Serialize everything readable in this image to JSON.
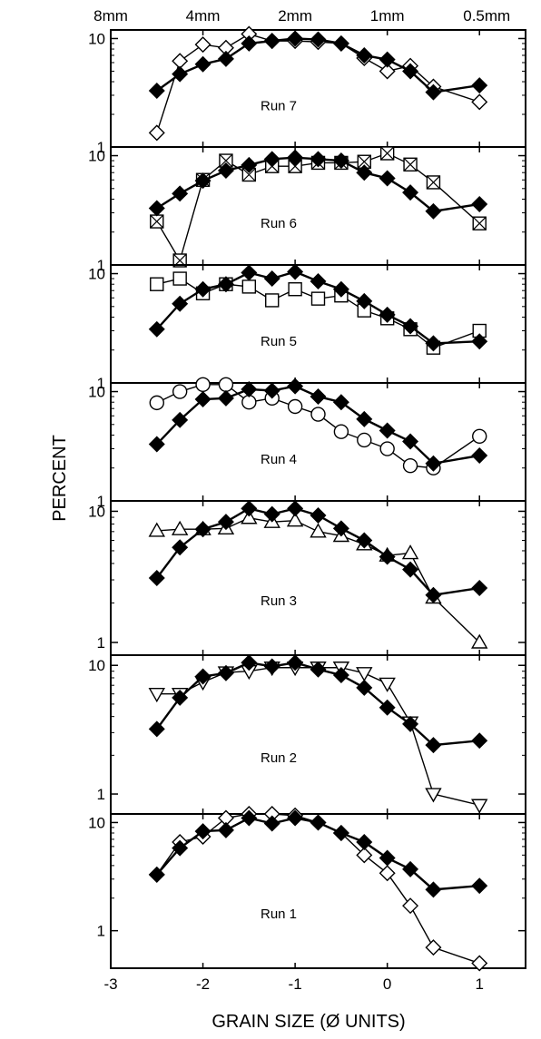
{
  "chart_data": {
    "type": "line",
    "xlabel": "GRAIN SIZE (Ø UNITS)",
    "ylabel": "PERCENT",
    "xlim": [
      -3,
      1.5
    ],
    "x_ticks": [
      -3,
      -2,
      -1,
      0,
      1
    ],
    "x_tick_labels": [
      "-3",
      "-2",
      "-1",
      "0",
      "1"
    ],
    "top_axis": {
      "ticks": [
        {
          "x": -3,
          "label": "8mm"
        },
        {
          "x": -2,
          "label": "4mm"
        },
        {
          "x": -1,
          "label": "2mm"
        },
        {
          "x": 0,
          "label": "1mm"
        },
        {
          "x": 1,
          "label": "0.5mm"
        }
      ]
    },
    "y_scale": "log",
    "x": [
      -2.5,
      -2.25,
      -2,
      -1.75,
      -1.5,
      -1.25,
      -1,
      -0.75,
      -0.5,
      -0.25,
      0,
      0.25,
      0.5,
      1
    ],
    "panels": [
      {
        "label": "Run 7",
        "ylim": [
          1,
          12
        ],
        "y_ticks": [
          1,
          10
        ],
        "series": [
          {
            "marker": "diamond-filled",
            "values": [
              3.3,
              4.7,
              5.8,
              6.5,
              9.0,
              9.5,
              10.0,
              9.8,
              9.0,
              7.0,
              6.4,
              5.0,
              3.2,
              3.7
            ]
          },
          {
            "marker": "diamond-open",
            "values": [
              1.35,
              6.2,
              8.8,
              8.2,
              11.0,
              9.5,
              9.5,
              9.3,
              9.0,
              6.6,
              5.0,
              5.6,
              3.6,
              2.6
            ]
          }
        ]
      },
      {
        "label": "Run 6",
        "ylim": [
          1,
          12
        ],
        "y_ticks": [
          1,
          10
        ],
        "series": [
          {
            "marker": "diamond-filled",
            "values": [
              3.3,
              4.5,
              5.9,
              7.3,
              8.2,
              9.3,
              9.6,
              9.3,
              9.0,
              7.0,
              6.2,
              4.6,
              3.1,
              3.6
            ]
          },
          {
            "marker": "square-x",
            "values": [
              2.5,
              1.1,
              6.0,
              9.0,
              6.7,
              8.0,
              8.0,
              8.6,
              8.6,
              8.8,
              10.5,
              8.3,
              5.7,
              2.4
            ]
          }
        ]
      },
      {
        "label": "Run 5",
        "ylim": [
          1,
          12
        ],
        "y_ticks": [
          1,
          10
        ],
        "series": [
          {
            "marker": "diamond-filled",
            "values": [
              3.1,
              5.3,
              7.2,
              8.0,
              10.2,
              9.0,
              10.4,
              8.5,
              7.2,
              5.6,
              4.2,
              3.3,
              2.3,
              2.4
            ]
          },
          {
            "marker": "square-open",
            "values": [
              8.0,
              9.0,
              6.6,
              8.0,
              7.6,
              5.7,
              7.2,
              5.9,
              6.3,
              4.6,
              3.9,
              3.1,
              2.1,
              3.0
            ]
          }
        ]
      },
      {
        "label": "Run 4",
        "ylim": [
          1,
          12
        ],
        "y_ticks": [
          1,
          10
        ],
        "series": [
          {
            "marker": "diamond-filled",
            "values": [
              3.3,
              5.5,
              8.5,
              8.7,
              10.5,
              10.2,
              11.2,
              9.0,
              8.0,
              5.6,
              4.4,
              3.5,
              2.2,
              2.6
            ]
          },
          {
            "marker": "circle-open",
            "values": [
              7.9,
              10.0,
              11.6,
              11.6,
              8.0,
              8.7,
              7.3,
              6.2,
              4.3,
              3.6,
              3.0,
              2.1,
              2.0,
              3.9
            ]
          }
        ]
      },
      {
        "label": "Run 3",
        "ylim": [
          0.8,
          12
        ],
        "y_ticks": [
          1,
          10
        ],
        "series": [
          {
            "marker": "diamond-filled",
            "values": [
              3.1,
              5.3,
              7.3,
              8.3,
              10.5,
              9.5,
              10.5,
              9.3,
              7.4,
              6.0,
              4.5,
              3.6,
              2.3,
              2.6
            ]
          },
          {
            "marker": "triangle-up-open",
            "values": [
              7.1,
              7.3,
              7.3,
              7.4,
              8.9,
              8.3,
              8.5,
              7.0,
              6.5,
              5.6,
              4.6,
              4.8,
              2.2,
              1.0
            ]
          }
        ]
      },
      {
        "label": "Run 2",
        "ylim": [
          0.7,
          12
        ],
        "y_ticks": [
          1,
          10
        ],
        "series": [
          {
            "marker": "diamond-filled",
            "values": [
              3.2,
              5.6,
              8.2,
              8.7,
              10.5,
              9.8,
              10.5,
              9.3,
              8.4,
              6.7,
              4.7,
              3.5,
              2.4,
              2.6
            ]
          },
          {
            "marker": "triangle-down-open",
            "values": [
              6.0,
              6.0,
              7.4,
              8.8,
              9.0,
              9.6,
              9.6,
              9.6,
              9.6,
              8.7,
              7.2,
              3.6,
              1.0,
              0.82
            ]
          }
        ]
      },
      {
        "label": "Run 1",
        "ylim": [
          0.45,
          12
        ],
        "y_ticks": [
          1,
          10
        ],
        "series": [
          {
            "marker": "diamond-filled",
            "values": [
              3.3,
              5.8,
              8.3,
              8.5,
              11.0,
              9.8,
              11.0,
              10.0,
              8.0,
              6.6,
              4.7,
              3.7,
              2.4,
              2.6
            ]
          },
          {
            "marker": "diamond-open",
            "values": [
              3.3,
              6.6,
              7.4,
              11.0,
              12.0,
              12.0,
              11.6,
              10.0,
              8.0,
              5.0,
              3.4,
              1.7,
              0.7,
              0.5
            ]
          }
        ]
      }
    ]
  }
}
